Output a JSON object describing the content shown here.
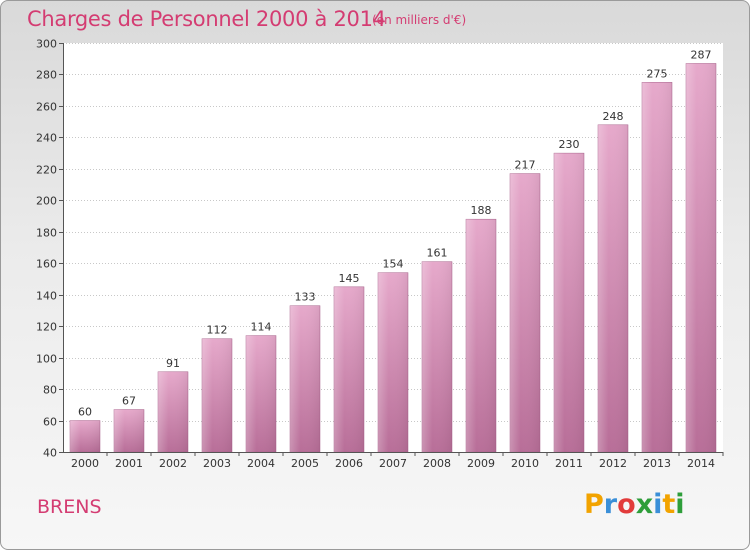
{
  "chart_data": {
    "type": "bar",
    "title": "Charges de Personnel 2000 à 2014",
    "subtitle": "(en milliers d'€)",
    "categories": [
      "2000",
      "2001",
      "2002",
      "2003",
      "2004",
      "2005",
      "2006",
      "2007",
      "2008",
      "2009",
      "2010",
      "2011",
      "2012",
      "2013",
      "2014"
    ],
    "values": [
      60,
      67,
      91,
      112,
      114,
      133,
      145,
      154,
      161,
      188,
      217,
      230,
      248,
      275,
      287
    ],
    "ylim": [
      40,
      300
    ],
    "yticks": [
      40,
      60,
      80,
      100,
      120,
      140,
      160,
      180,
      200,
      220,
      240,
      260,
      280,
      300
    ],
    "xlabel": "",
    "ylabel": "",
    "grid": true,
    "bar_color": "#c9699a"
  },
  "footer": {
    "commune": "BRENS",
    "brand_letters": [
      "P",
      "r",
      "o",
      "x",
      "i",
      "t",
      "i"
    ],
    "brand_colors": [
      "#f2a300",
      "#3a8fd8",
      "#e23b3b",
      "#2e9e3a",
      "#3a8fd8",
      "#f2a300",
      "#2e9e3a"
    ]
  },
  "colors": {
    "accent": "#d43c72"
  }
}
